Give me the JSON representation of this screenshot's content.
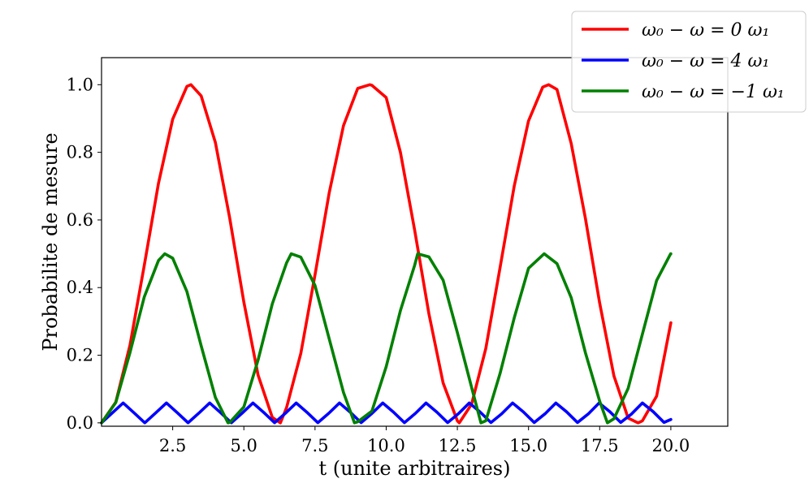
{
  "chart_data": {
    "type": "line",
    "title": "",
    "xlabel": "t (unite arbitraires)",
    "ylabel": "Probabilite de mesure",
    "xlim": [
      0,
      22
    ],
    "ylim": [
      -0.01,
      1.08
    ],
    "x_ticks": [
      2.5,
      5.0,
      7.5,
      10.0,
      12.5,
      15.0,
      17.5,
      20.0
    ],
    "x_tick_labels": [
      "2.5",
      "5.0",
      "7.5",
      "10.0",
      "12.5",
      "15.0",
      "17.5",
      "20.0"
    ],
    "y_ticks": [
      0.0,
      0.2,
      0.4,
      0.6,
      0.8,
      1.0
    ],
    "y_tick_labels": [
      "0.0",
      "0.2",
      "0.4",
      "0.6",
      "0.8",
      "1.0"
    ],
    "grid": false,
    "legend_position": "top-right (outside plot)",
    "x_range": [
      0,
      20
    ],
    "series": [
      {
        "name": "ω₀ − ω = 0 ω₁",
        "color": "#ff0000",
        "x": [
          0,
          0.5,
          1,
          1.5,
          2,
          2.5,
          3,
          3.1416,
          3.5,
          4,
          4.5,
          5,
          5.5,
          6,
          6.2832,
          6.5,
          7,
          7.5,
          8,
          8.5,
          9,
          9.4248,
          9.5,
          10,
          10.5,
          11,
          11.5,
          12,
          12.5,
          12.5664,
          13,
          13.5,
          14,
          14.5,
          15,
          15.5,
          15.708,
          16,
          16.5,
          17,
          17.5,
          18,
          18.5,
          18.8496,
          19,
          19.5,
          20
        ],
        "values": [
          0,
          0.061,
          0.23,
          0.465,
          0.708,
          0.898,
          0.995,
          1.0,
          0.967,
          0.829,
          0.607,
          0.357,
          0.141,
          0.016,
          0.0,
          0.045,
          0.205,
          0.438,
          0.681,
          0.879,
          0.989,
          1.0,
          0.998,
          0.962,
          0.8,
          0.57,
          0.323,
          0.118,
          0.006,
          0.0,
          0.055,
          0.22,
          0.459,
          0.701,
          0.893,
          0.993,
          1.0,
          0.986,
          0.826,
          0.604,
          0.354,
          0.139,
          0.014,
          0.0,
          0.006,
          0.079,
          0.296
        ]
      },
      {
        "name": "ω₀ − ω = 4 ω₁",
        "color": "#0000ff",
        "x": [
          0,
          0.38,
          0.76,
          1.14,
          1.52,
          1.9,
          2.28,
          2.66,
          3.04,
          3.42,
          3.8,
          4.18,
          4.56,
          4.94,
          5.32,
          5.7,
          6.08,
          6.46,
          6.84,
          7.22,
          7.6,
          7.98,
          8.36,
          8.74,
          9.12,
          9.5,
          9.88,
          10.26,
          10.64,
          11.02,
          11.4,
          11.78,
          12.16,
          12.54,
          12.92,
          13.3,
          13.68,
          14.06,
          14.44,
          14.82,
          15.2,
          15.58,
          15.96,
          16.34,
          16.72,
          17.1,
          17.48,
          17.86,
          18.24,
          18.62,
          19,
          19.38,
          19.76,
          20
        ],
        "values": [
          0,
          0.0295,
          0.0588,
          0.0298,
          0.0001,
          0.0292,
          0.0588,
          0.0301,
          0.0002,
          0.0289,
          0.0588,
          0.0303,
          0.0002,
          0.0286,
          0.0588,
          0.0306,
          0.0003,
          0.0284,
          0.0588,
          0.0309,
          0.0004,
          0.0281,
          0.0588,
          0.0312,
          0.0005,
          0.0278,
          0.0588,
          0.0314,
          0.0006,
          0.0275,
          0.0588,
          0.0317,
          0.0007,
          0.0272,
          0.0588,
          0.032,
          0.0008,
          0.027,
          0.0588,
          0.0323,
          0.0009,
          0.0267,
          0.0588,
          0.0325,
          0.001,
          0.0264,
          0.0588,
          0.0328,
          0.0012,
          0.0262,
          0.0588,
          0.0331,
          0.0013,
          0.01
        ]
      },
      {
        "name": "ω₀ − ω = −1 ω₁",
        "color": "#008000",
        "x": [
          0,
          0.5,
          1,
          1.5,
          2,
          2.2214,
          2.5,
          3,
          3.5,
          4,
          4.4429,
          4.5,
          5,
          5.5,
          6,
          6.5,
          6.6643,
          7,
          7.5,
          8,
          8.5,
          8.8858,
          9,
          9.5,
          10,
          10.5,
          11,
          11.1072,
          11.5,
          12,
          12.5,
          13,
          13.3286,
          13.5,
          14,
          14.5,
          15,
          15.5501,
          16,
          16.5,
          17,
          17.5,
          17.7715,
          18,
          18.5,
          19,
          19.5,
          19.9929,
          20
        ],
        "values": [
          0,
          0.06,
          0.208,
          0.372,
          0.48,
          0.5,
          0.487,
          0.388,
          0.228,
          0.075,
          0.0,
          0.001,
          0.047,
          0.186,
          0.352,
          0.473,
          0.5,
          0.49,
          0.406,
          0.248,
          0.09,
          0.0,
          0.003,
          0.035,
          0.166,
          0.332,
          0.466,
          0.5,
          0.491,
          0.422,
          0.267,
          0.105,
          0.0,
          0.006,
          0.146,
          0.311,
          0.457,
          0.5,
          0.471,
          0.37,
          0.207,
          0.064,
          0.0,
          0.012,
          0.102,
          0.262,
          0.421,
          0.5,
          0.5
        ]
      }
    ]
  }
}
